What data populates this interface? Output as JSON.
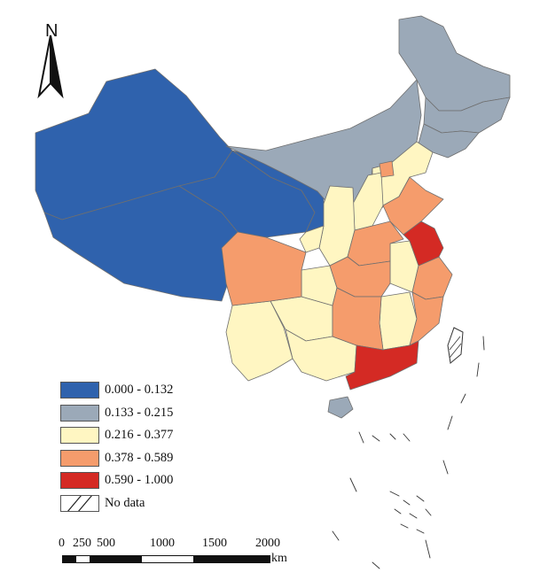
{
  "map": {
    "north_label": "N",
    "legend": [
      {
        "label": "0.000 - 0.132",
        "color": "#2f62ad"
      },
      {
        "label": "0.133 - 0.215",
        "color": "#9ba9b8"
      },
      {
        "label": "0.216 - 0.377",
        "color": "#fff6c2"
      },
      {
        "label": "0.378 - 0.589",
        "color": "#f59c6c"
      },
      {
        "label": "0.590 - 1.000",
        "color": "#d42a24"
      },
      {
        "label": "No data",
        "color": "#ffffff",
        "pattern": "hatched"
      }
    ],
    "scale_bar": {
      "ticks": [
        "0",
        "250",
        "500",
        "1000",
        "1500",
        "2000"
      ],
      "unit": "km"
    }
  }
}
